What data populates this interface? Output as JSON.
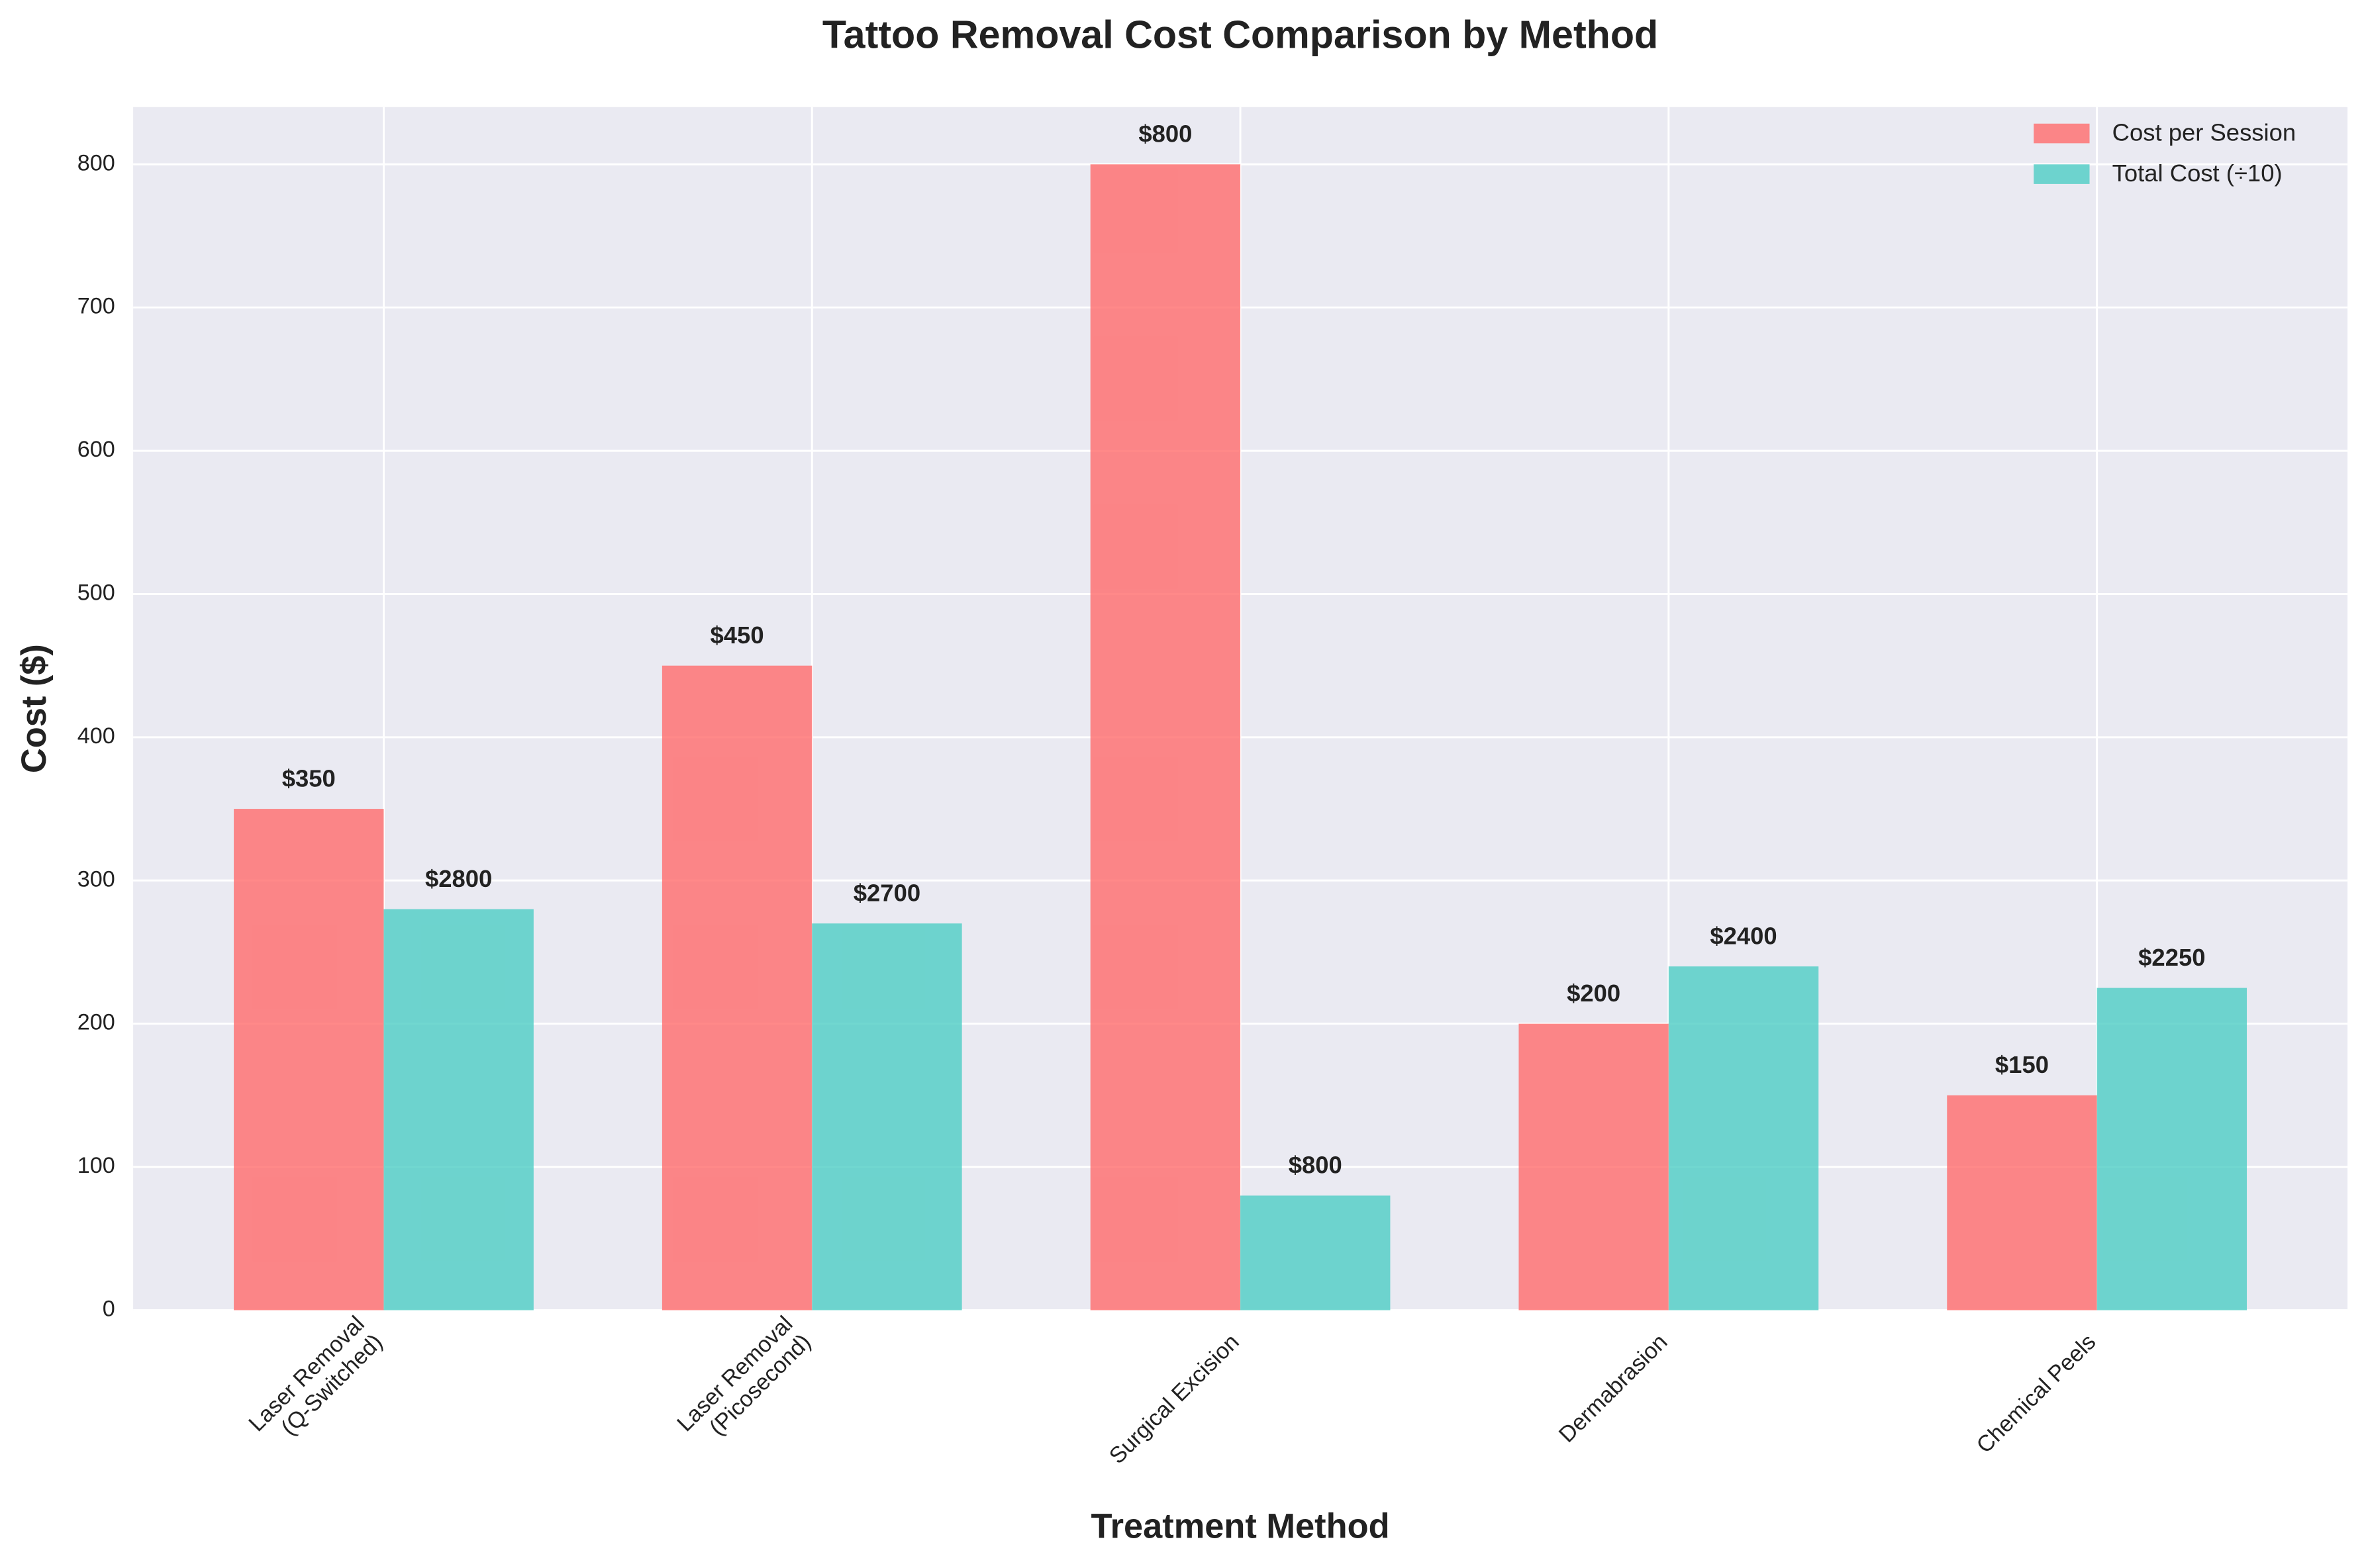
{
  "chart_data": {
    "type": "bar",
    "title": "Tattoo Removal Cost Comparison by Method",
    "x_label": "Treatment Method",
    "y_label": "Cost ($)",
    "categories": [
      "Laser Removal\n(Q-Switched)",
      "Laser Removal\n(Picosecond)",
      "Surgical Excision",
      "Dermabrasion",
      "Chemical Peels"
    ],
    "series": [
      {
        "name": "Cost per Session",
        "color": "#ff6b6b",
        "values": [
          350,
          450,
          800,
          200,
          150
        ],
        "value_labels": [
          "$350",
          "$450",
          "$800",
          "$200",
          "$150"
        ]
      },
      {
        "name": "Total Cost (÷10)",
        "color": "#4ecdc4",
        "values": [
          280,
          270,
          80,
          240,
          225
        ],
        "value_labels": [
          "$2800",
          "$2700",
          "$800",
          "$2400",
          "$2250"
        ]
      }
    ],
    "ylim": [
      0,
      840
    ],
    "yticks": [
      0,
      100,
      200,
      300,
      400,
      500,
      600,
      700,
      800
    ],
    "grid": true,
    "legend": "upper right"
  }
}
